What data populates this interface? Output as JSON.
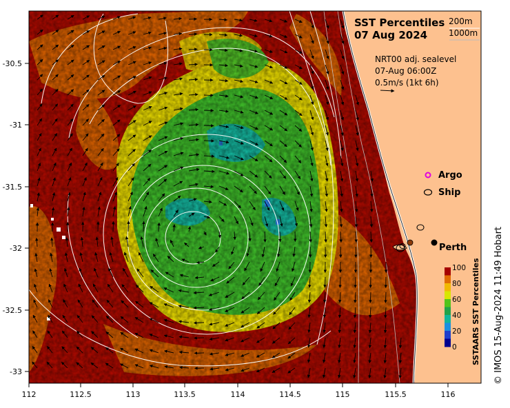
{
  "title": {
    "line1": "SST Percentiles",
    "line2": "07 Aug 2024"
  },
  "contour_legend": {
    "level1": "200m",
    "level2": "1000m"
  },
  "current_info": {
    "line1": "NRT00 adj. sealevel",
    "line2": "07-Aug 06:00Z",
    "line3": "0.5m/s (1kt 6h)"
  },
  "legend": {
    "argo": "Argo",
    "ship": "Ship"
  },
  "places": {
    "perth": "Perth"
  },
  "colorbar": {
    "title": "SSTAARS SST Percentiles",
    "ticks": [
      "100",
      "80",
      "60",
      "40",
      "20",
      "0"
    ],
    "colors": [
      "#a50000",
      "#e06b00",
      "#f1b800",
      "#d8e600",
      "#52c41a",
      "#21a34a",
      "#11b59b",
      "#1b8fe0",
      "#1e3fcc",
      "#00008f"
    ]
  },
  "credit": "© IMOS 15-Aug-2024 11:49 Hobart",
  "axes": {
    "y_ticks": [
      "-30.5",
      "-31",
      "-31.5",
      "-32",
      "-32.5",
      "-33"
    ],
    "x_ticks": [
      "112",
      "112.5",
      "113",
      "113.5",
      "114",
      "114.5",
      "115",
      "115.5",
      "116"
    ]
  },
  "colors": {
    "land": "#fdc18f",
    "hot": "#a50000",
    "warm": "#e06b00",
    "yellow": "#eedf00",
    "green": "#3fbf2a",
    "teal": "#14b8a0",
    "blue": "#2a7ee8"
  }
}
